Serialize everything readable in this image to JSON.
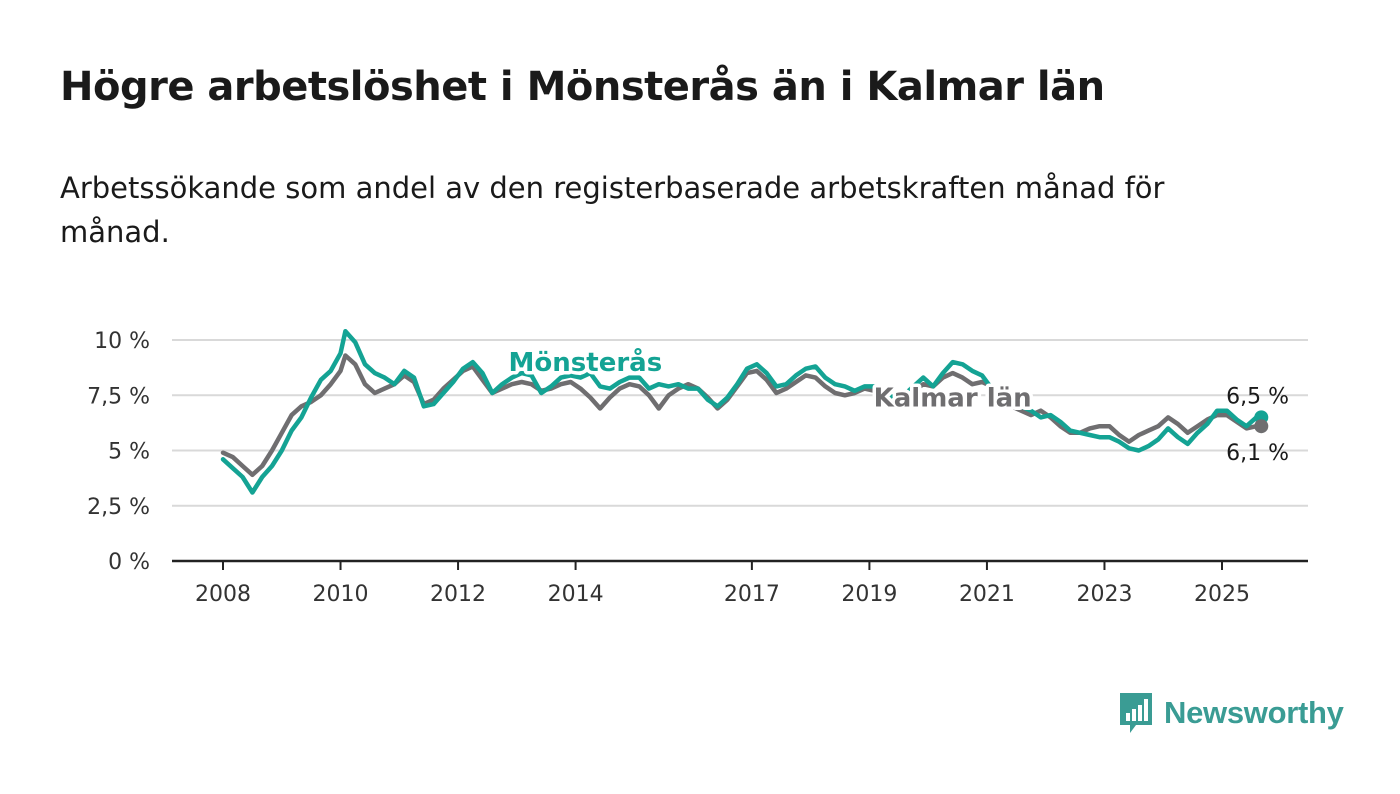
{
  "title": "Högre arbetslöshet i Mönsterås än i Kalmar län",
  "subtitle": "Arbetssökande som andel av den registerbaserade arbetskraften månad för månad.",
  "brand": {
    "name": "Newsworthy",
    "icon": "newsworthy-bar-chart-icon"
  },
  "colors": {
    "monsteras": "#14a394",
    "kalmar": "#6f6e70",
    "axis": "#222222",
    "grid": "#d9d9d9",
    "brand": "#3a9c94",
    "label_halo": "#ffffff"
  },
  "chart_data": {
    "type": "line",
    "title": "",
    "xlabel": "",
    "ylabel": "",
    "ylim": [
      0,
      10
    ],
    "yticks": [
      {
        "value": 0,
        "label": "0 %"
      },
      {
        "value": 2.5,
        "label": "2,5 %"
      },
      {
        "value": 5,
        "label": "5 %"
      },
      {
        "value": 7.5,
        "label": "7,5 %"
      },
      {
        "value": 10,
        "label": "10 %"
      }
    ],
    "xlim": [
      "2008-01",
      "2025-12"
    ],
    "xticks": [
      {
        "value": "2008-01",
        "label": "2008"
      },
      {
        "value": "2010-01",
        "label": "2010"
      },
      {
        "value": "2012-01",
        "label": "2012"
      },
      {
        "value": "2014-01",
        "label": "2014"
      },
      {
        "value": "2017-01",
        "label": "2017"
      },
      {
        "value": "2019-01",
        "label": "2019"
      },
      {
        "value": "2021-01",
        "label": "2021"
      },
      {
        "value": "2023-01",
        "label": "2023"
      },
      {
        "value": "2025-01",
        "label": "2025"
      }
    ],
    "grid": true,
    "legend": "inline labels",
    "series": [
      {
        "name": "Mönsterås",
        "color": "#14a394",
        "end_label": "6,5 %",
        "points": [
          [
            "2008-01",
            4.6
          ],
          [
            "2008-03",
            4.2
          ],
          [
            "2008-05",
            3.8
          ],
          [
            "2008-07",
            3.1
          ],
          [
            "2008-09",
            3.8
          ],
          [
            "2008-11",
            4.3
          ],
          [
            "2009-01",
            5.0
          ],
          [
            "2009-03",
            5.9
          ],
          [
            "2009-05",
            6.5
          ],
          [
            "2009-07",
            7.4
          ],
          [
            "2009-09",
            8.2
          ],
          [
            "2009-11",
            8.6
          ],
          [
            "2010-01",
            9.4
          ],
          [
            "2010-02",
            10.4
          ],
          [
            "2010-04",
            9.9
          ],
          [
            "2010-06",
            8.9
          ],
          [
            "2010-08",
            8.5
          ],
          [
            "2010-10",
            8.3
          ],
          [
            "2010-12",
            8.0
          ],
          [
            "2011-02",
            8.6
          ],
          [
            "2011-04",
            8.3
          ],
          [
            "2011-06",
            7.0
          ],
          [
            "2011-08",
            7.1
          ],
          [
            "2011-10",
            7.6
          ],
          [
            "2011-12",
            8.1
          ],
          [
            "2012-02",
            8.7
          ],
          [
            "2012-04",
            9.0
          ],
          [
            "2012-06",
            8.5
          ],
          [
            "2012-08",
            7.6
          ],
          [
            "2012-10",
            8.0
          ],
          [
            "2012-12",
            8.3
          ],
          [
            "2013-02",
            8.5
          ],
          [
            "2013-04",
            8.4
          ],
          [
            "2013-06",
            7.6
          ],
          [
            "2013-08",
            7.9
          ],
          [
            "2013-10",
            8.3
          ],
          [
            "2013-12",
            8.4
          ],
          [
            "2014-02",
            8.3
          ],
          [
            "2014-04",
            8.5
          ],
          [
            "2014-06",
            7.9
          ],
          [
            "2014-08",
            7.8
          ],
          [
            "2014-10",
            8.1
          ],
          [
            "2014-12",
            8.3
          ],
          [
            "2015-02",
            8.3
          ],
          [
            "2015-04",
            7.8
          ],
          [
            "2015-06",
            8.0
          ],
          [
            "2015-08",
            7.9
          ],
          [
            "2015-10",
            8.0
          ],
          [
            "2015-12",
            7.8
          ],
          [
            "2016-02",
            7.8
          ],
          [
            "2016-04",
            7.3
          ],
          [
            "2016-06",
            7.0
          ],
          [
            "2016-08",
            7.4
          ],
          [
            "2016-10",
            8.0
          ],
          [
            "2016-12",
            8.7
          ],
          [
            "2017-02",
            8.9
          ],
          [
            "2017-04",
            8.5
          ],
          [
            "2017-06",
            7.9
          ],
          [
            "2017-08",
            8.0
          ],
          [
            "2017-10",
            8.4
          ],
          [
            "2017-12",
            8.7
          ],
          [
            "2018-02",
            8.8
          ],
          [
            "2018-04",
            8.3
          ],
          [
            "2018-06",
            8.0
          ],
          [
            "2018-08",
            7.9
          ],
          [
            "2018-10",
            7.7
          ],
          [
            "2018-12",
            7.9
          ],
          [
            "2019-02",
            7.9
          ],
          [
            "2019-04",
            7.6
          ],
          [
            "2019-06",
            7.4
          ],
          [
            "2019-08",
            7.5
          ],
          [
            "2019-10",
            7.9
          ],
          [
            "2019-12",
            8.3
          ],
          [
            "2020-02",
            7.9
          ],
          [
            "2020-04",
            8.5
          ],
          [
            "2020-06",
            9.0
          ],
          [
            "2020-08",
            8.9
          ],
          [
            "2020-10",
            8.6
          ],
          [
            "2020-12",
            8.4
          ],
          [
            "2021-02",
            7.8
          ],
          [
            "2021-04",
            7.5
          ],
          [
            "2021-06",
            7.2
          ],
          [
            "2021-08",
            7.0
          ],
          [
            "2021-10",
            6.8
          ],
          [
            "2021-12",
            6.5
          ],
          [
            "2022-02",
            6.6
          ],
          [
            "2022-04",
            6.3
          ],
          [
            "2022-06",
            5.9
          ],
          [
            "2022-08",
            5.8
          ],
          [
            "2022-10",
            5.7
          ],
          [
            "2022-12",
            5.6
          ],
          [
            "2023-02",
            5.6
          ],
          [
            "2023-04",
            5.4
          ],
          [
            "2023-06",
            5.1
          ],
          [
            "2023-08",
            5.0
          ],
          [
            "2023-10",
            5.2
          ],
          [
            "2023-12",
            5.5
          ],
          [
            "2024-02",
            6.0
          ],
          [
            "2024-04",
            5.6
          ],
          [
            "2024-06",
            5.3
          ],
          [
            "2024-08",
            5.8
          ],
          [
            "2024-10",
            6.2
          ],
          [
            "2024-12",
            6.8
          ],
          [
            "2025-02",
            6.8
          ],
          [
            "2025-04",
            6.4
          ],
          [
            "2025-06",
            6.1
          ],
          [
            "2025-08",
            6.5
          ]
        ]
      },
      {
        "name": "Kalmar län",
        "color": "#6f6e70",
        "end_label": "6,1 %",
        "points": [
          [
            "2008-01",
            4.9
          ],
          [
            "2008-03",
            4.7
          ],
          [
            "2008-05",
            4.3
          ],
          [
            "2008-07",
            3.9
          ],
          [
            "2008-09",
            4.3
          ],
          [
            "2008-11",
            5.0
          ],
          [
            "2009-01",
            5.8
          ],
          [
            "2009-03",
            6.6
          ],
          [
            "2009-05",
            7.0
          ],
          [
            "2009-07",
            7.2
          ],
          [
            "2009-09",
            7.5
          ],
          [
            "2009-11",
            8.0
          ],
          [
            "2010-01",
            8.6
          ],
          [
            "2010-02",
            9.3
          ],
          [
            "2010-04",
            8.9
          ],
          [
            "2010-06",
            8.0
          ],
          [
            "2010-08",
            7.6
          ],
          [
            "2010-10",
            7.8
          ],
          [
            "2010-12",
            8.0
          ],
          [
            "2011-02",
            8.4
          ],
          [
            "2011-04",
            8.1
          ],
          [
            "2011-06",
            7.1
          ],
          [
            "2011-08",
            7.3
          ],
          [
            "2011-10",
            7.8
          ],
          [
            "2011-12",
            8.2
          ],
          [
            "2012-02",
            8.6
          ],
          [
            "2012-04",
            8.8
          ],
          [
            "2012-06",
            8.2
          ],
          [
            "2012-08",
            7.6
          ],
          [
            "2012-10",
            7.8
          ],
          [
            "2012-12",
            8.0
          ],
          [
            "2013-02",
            8.1
          ],
          [
            "2013-04",
            8.0
          ],
          [
            "2013-06",
            7.7
          ],
          [
            "2013-08",
            7.8
          ],
          [
            "2013-10",
            8.0
          ],
          [
            "2013-12",
            8.1
          ],
          [
            "2014-02",
            7.8
          ],
          [
            "2014-04",
            7.4
          ],
          [
            "2014-06",
            6.9
          ],
          [
            "2014-08",
            7.4
          ],
          [
            "2014-10",
            7.8
          ],
          [
            "2014-12",
            8.0
          ],
          [
            "2015-02",
            7.9
          ],
          [
            "2015-04",
            7.5
          ],
          [
            "2015-06",
            6.9
          ],
          [
            "2015-08",
            7.5
          ],
          [
            "2015-10",
            7.8
          ],
          [
            "2015-12",
            8.0
          ],
          [
            "2016-02",
            7.8
          ],
          [
            "2016-04",
            7.4
          ],
          [
            "2016-06",
            6.9
          ],
          [
            "2016-08",
            7.3
          ],
          [
            "2016-10",
            7.9
          ],
          [
            "2016-12",
            8.5
          ],
          [
            "2017-02",
            8.6
          ],
          [
            "2017-04",
            8.2
          ],
          [
            "2017-06",
            7.6
          ],
          [
            "2017-08",
            7.8
          ],
          [
            "2017-10",
            8.1
          ],
          [
            "2017-12",
            8.4
          ],
          [
            "2018-02",
            8.3
          ],
          [
            "2018-04",
            7.9
          ],
          [
            "2018-06",
            7.6
          ],
          [
            "2018-08",
            7.5
          ],
          [
            "2018-10",
            7.6
          ],
          [
            "2018-12",
            7.8
          ],
          [
            "2019-02",
            7.7
          ],
          [
            "2019-04",
            7.5
          ],
          [
            "2019-06",
            7.3
          ],
          [
            "2019-08",
            7.4
          ],
          [
            "2019-10",
            7.7
          ],
          [
            "2019-12",
            8.0
          ],
          [
            "2020-02",
            7.9
          ],
          [
            "2020-04",
            8.3
          ],
          [
            "2020-06",
            8.5
          ],
          [
            "2020-08",
            8.3
          ],
          [
            "2020-10",
            8.0
          ],
          [
            "2020-12",
            8.1
          ],
          [
            "2021-02",
            7.9
          ],
          [
            "2021-04",
            7.3
          ],
          [
            "2021-06",
            7.0
          ],
          [
            "2021-08",
            6.8
          ],
          [
            "2021-10",
            6.6
          ],
          [
            "2021-12",
            6.8
          ],
          [
            "2022-02",
            6.5
          ],
          [
            "2022-04",
            6.1
          ],
          [
            "2022-06",
            5.8
          ],
          [
            "2022-08",
            5.8
          ],
          [
            "2022-10",
            6.0
          ],
          [
            "2022-12",
            6.1
          ],
          [
            "2023-02",
            6.1
          ],
          [
            "2023-04",
            5.7
          ],
          [
            "2023-06",
            5.4
          ],
          [
            "2023-08",
            5.7
          ],
          [
            "2023-10",
            5.9
          ],
          [
            "2023-12",
            6.1
          ],
          [
            "2024-02",
            6.5
          ],
          [
            "2024-04",
            6.2
          ],
          [
            "2024-06",
            5.8
          ],
          [
            "2024-08",
            6.1
          ],
          [
            "2024-10",
            6.4
          ],
          [
            "2024-12",
            6.6
          ],
          [
            "2025-02",
            6.6
          ],
          [
            "2025-04",
            6.3
          ],
          [
            "2025-06",
            6.0
          ],
          [
            "2025-08",
            6.1
          ]
        ]
      }
    ],
    "inline_labels": [
      {
        "series": "Mönsterås",
        "text": "Mönsterås",
        "at": [
          "2014-03",
          8.6
        ]
      },
      {
        "series": "Kalmar län",
        "text": "Kalmar län",
        "at": [
          "2020-06",
          7.0
        ]
      }
    ]
  }
}
